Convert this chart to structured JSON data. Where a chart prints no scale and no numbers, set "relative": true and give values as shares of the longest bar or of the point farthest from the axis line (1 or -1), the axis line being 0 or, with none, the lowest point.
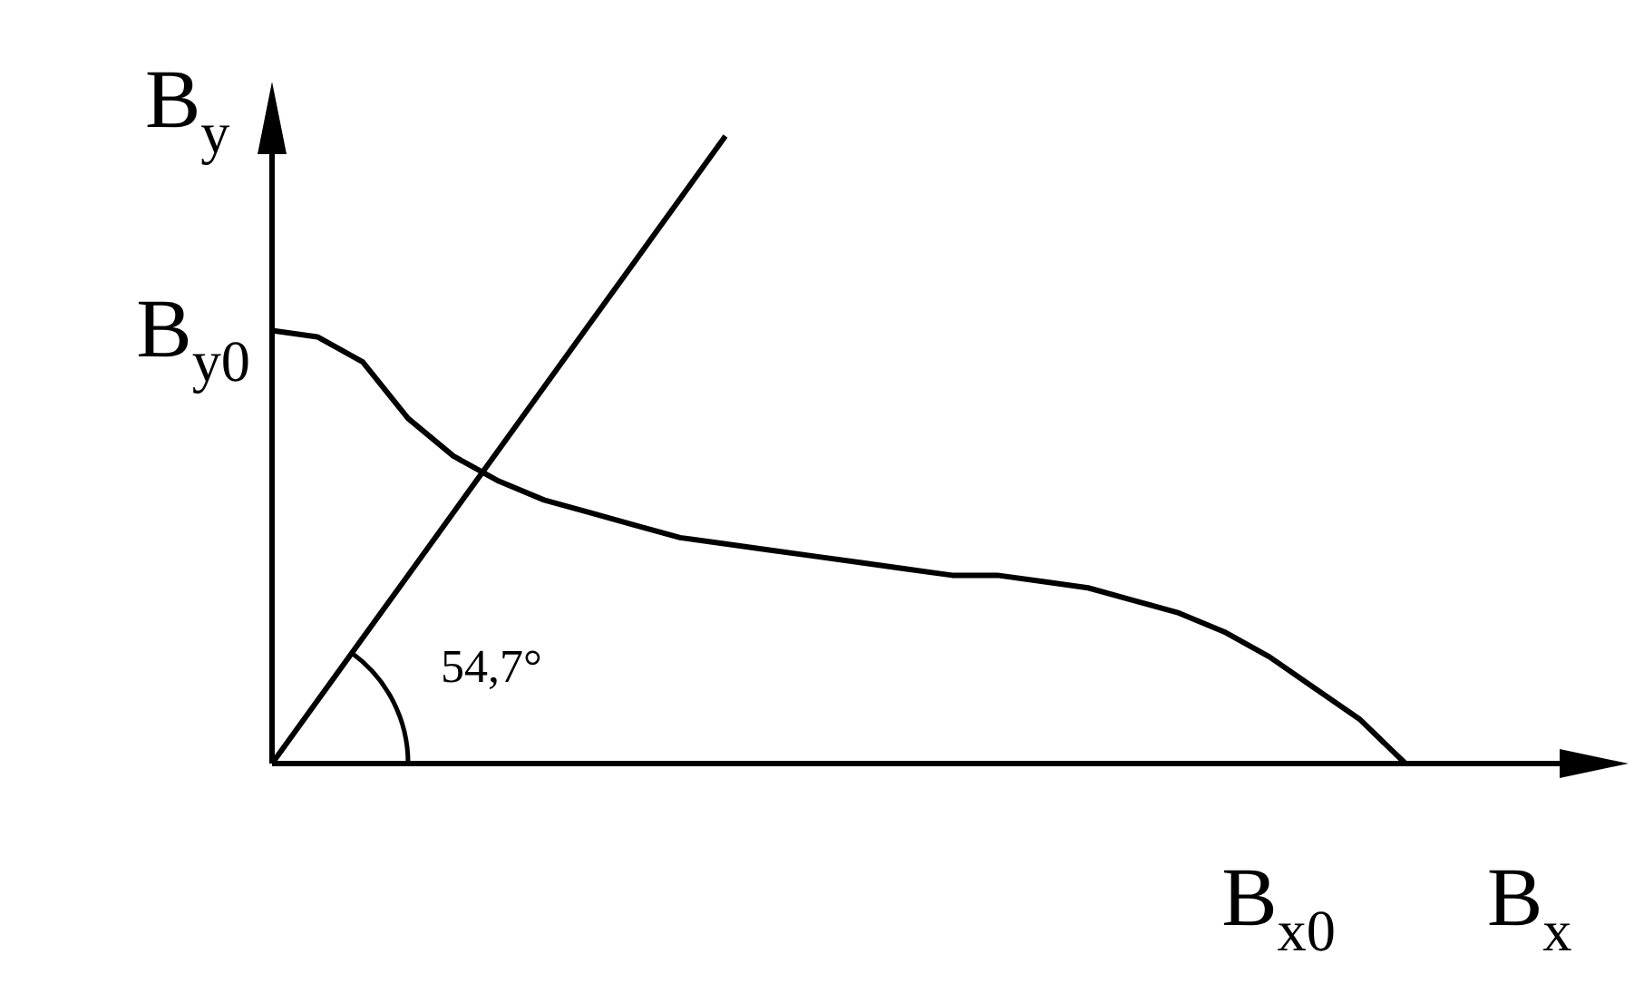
{
  "chart_data": {
    "type": "line",
    "relative": true,
    "xlabel": "B$_{x}$",
    "ylabel": "B$_{y}$",
    "categories": [
      null,
      null,
      null,
      null,
      null,
      null,
      null,
      null,
      null,
      null,
      null,
      null,
      null,
      null,
      null,
      null,
      null,
      null,
      null,
      null,
      null,
      null,
      null,
      null,
      null,
      null
    ],
    "series": [
      {
        "color": "#000000",
        "values": [
          0.69,
          0.68,
          0.64,
          0.55,
          0.49,
          0.45,
          0.42,
          0.4,
          0.38,
          0.36,
          0.35,
          0.34,
          0.33,
          0.32,
          0.31,
          0.3,
          0.3,
          0.29,
          0.28,
          0.26,
          0.24,
          0.21,
          0.17,
          0.12,
          0.07,
          0
        ]
      },
      {
        "color": "#000000",
        "values": [
          0,
          0.1,
          0.2,
          0.3,
          0.4,
          0.5,
          0.6,
          0.7,
          0.8,
          0.9,
          1,
          null,
          null,
          null,
          null,
          null,
          null,
          null,
          null,
          null,
          null,
          null,
          null,
          null,
          null,
          null
        ]
      }
    ],
    "annotations": [
      "B$_{y0}$",
      "B$_{x0}$",
      "54,7°"
    ],
    "marker": "none",
    "line_style": "solid",
    "legend": false
  }
}
